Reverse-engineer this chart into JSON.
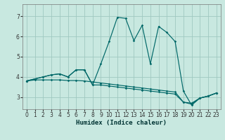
{
  "title": "",
  "xlabel": "Humidex (Indice chaleur)",
  "bg_color": "#c8e8e0",
  "grid_color": "#a0c8c0",
  "line_color": "#006868",
  "xlim": [
    -0.5,
    23.5
  ],
  "ylim": [
    2.4,
    7.6
  ],
  "xticks": [
    0,
    1,
    2,
    3,
    4,
    5,
    6,
    7,
    8,
    9,
    10,
    11,
    12,
    13,
    14,
    15,
    16,
    17,
    18,
    19,
    20,
    21,
    22,
    23
  ],
  "yticks": [
    3,
    4,
    5,
    6,
    7
  ],
  "lines": [
    {
      "x": [
        0,
        1,
        2,
        3,
        4,
        5,
        6,
        7,
        8,
        9,
        10,
        11,
        12,
        13,
        14,
        15,
        16,
        17,
        18,
        19,
        20,
        21,
        22,
        23
      ],
      "y": [
        3.8,
        3.85,
        3.85,
        3.85,
        3.85,
        3.82,
        3.82,
        3.8,
        3.75,
        3.7,
        3.65,
        3.6,
        3.55,
        3.5,
        3.45,
        3.4,
        3.35,
        3.3,
        3.25,
        2.75,
        2.7,
        2.95,
        3.05,
        3.2
      ]
    },
    {
      "x": [
        0,
        1,
        2,
        3,
        4,
        5,
        6,
        7,
        8,
        9,
        10,
        11,
        12,
        13,
        14,
        15,
        16,
        17,
        18,
        19,
        20,
        21,
        22,
        23
      ],
      "y": [
        3.8,
        3.9,
        4.0,
        4.1,
        4.15,
        4.0,
        4.35,
        4.35,
        3.6,
        4.65,
        5.75,
        6.95,
        6.9,
        5.8,
        6.55,
        4.65,
        6.5,
        6.2,
        5.75,
        3.3,
        2.6,
        2.95,
        3.05,
        3.2
      ]
    },
    {
      "x": [
        0,
        1,
        2,
        3,
        4,
        5,
        6,
        7,
        8,
        9,
        10,
        11,
        12,
        13,
        14,
        15,
        16,
        17,
        18,
        19,
        20,
        21,
        22,
        23
      ],
      "y": [
        3.8,
        3.9,
        4.0,
        4.1,
        4.15,
        4.0,
        4.35,
        4.35,
        3.6,
        3.6,
        3.55,
        3.5,
        3.45,
        3.4,
        3.35,
        3.3,
        3.25,
        3.2,
        3.15,
        2.75,
        2.65,
        2.95,
        3.05,
        3.2
      ]
    }
  ]
}
